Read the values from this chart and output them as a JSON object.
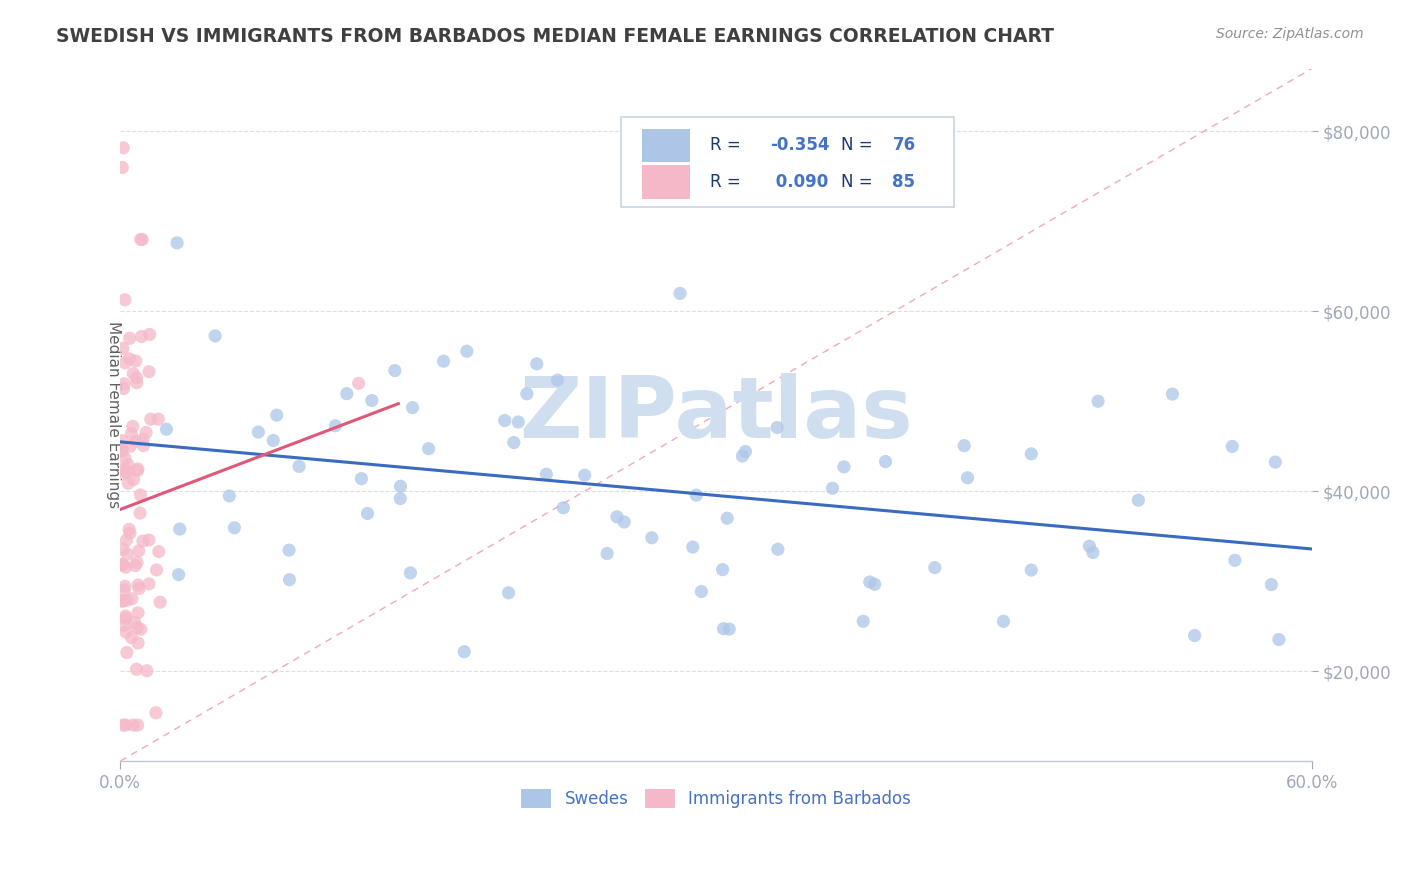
{
  "title": "SWEDISH VS IMMIGRANTS FROM BARBADOS MEDIAN FEMALE EARNINGS CORRELATION CHART",
  "source": "Source: ZipAtlas.com",
  "ylabel": "Median Female Earnings",
  "xlim": [
    0.0,
    0.6
  ],
  "ylim": [
    10000,
    87000
  ],
  "xtick_positions": [
    0.0,
    0.6
  ],
  "xtick_labels": [
    "0.0%",
    "60.0%"
  ],
  "yticks": [
    20000,
    40000,
    60000,
    80000
  ],
  "ytick_labels": [
    "$20,000",
    "$40,000",
    "$60,000",
    "$80,000"
  ],
  "blue_R": -0.354,
  "blue_N": 76,
  "pink_R": 0.09,
  "pink_N": 85,
  "blue_color": "#adc6e8",
  "pink_color": "#f5b8c8",
  "blue_line_color": "#3a6bbf",
  "pink_line_color": "#e05878",
  "diag_line_color": "#f0a0b0",
  "watermark": "ZIPatlas",
  "watermark_color": "#d0dff0",
  "legend_label_blue": "Swedes",
  "legend_label_pink": "Immigrants from Barbados",
  "background_color": "#ffffff",
  "grid_color": "#d8dfe8",
  "title_color": "#404040",
  "label_color": "#4472c4",
  "legend_text_color": "#1a3a6a",
  "axis_label_color": "#606060"
}
